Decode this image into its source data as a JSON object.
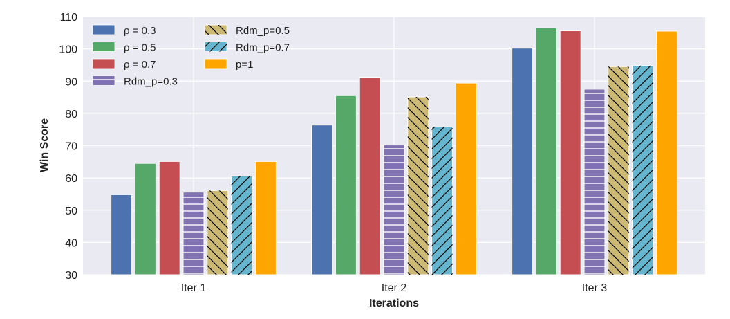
{
  "chart_data": {
    "type": "bar",
    "title": "",
    "xlabel": "Iterations",
    "ylabel": "Win Score",
    "ylim": [
      30,
      110
    ],
    "yticks": [
      30,
      40,
      50,
      60,
      70,
      80,
      90,
      100,
      110
    ],
    "grid": true,
    "legend_position": "top-left",
    "categories": [
      "Iter 1",
      "Iter 2",
      "Iter 3"
    ],
    "series": [
      {
        "name": "ρ = 0.3",
        "values": [
          54.8,
          76.4,
          100.2
        ],
        "color": "#4c72b0",
        "hatch": "none"
      },
      {
        "name": "ρ = 0.5",
        "values": [
          64.5,
          85.5,
          106.5
        ],
        "color": "#55a868",
        "hatch": "none"
      },
      {
        "name": "ρ = 0.7",
        "values": [
          65.1,
          91.2,
          105.6
        ],
        "color": "#c44e52",
        "hatch": "none"
      },
      {
        "name": "Rdm_p=0.3",
        "values": [
          55.6,
          70.2,
          87.5
        ],
        "color": "#8172b2",
        "hatch": "horizontal"
      },
      {
        "name": "Rdm_p=0.5",
        "values": [
          56.1,
          85.1,
          94.5
        ],
        "color": "#ccb974",
        "hatch": "backslash"
      },
      {
        "name": "Rdm_p=0.7",
        "values": [
          60.6,
          75.8,
          94.8
        ],
        "color": "#64b5cd",
        "hatch": "slash"
      },
      {
        "name": "p=1",
        "values": [
          65.1,
          89.4,
          105.5
        ],
        "color": "#ffa500",
        "hatch": "none"
      }
    ]
  }
}
